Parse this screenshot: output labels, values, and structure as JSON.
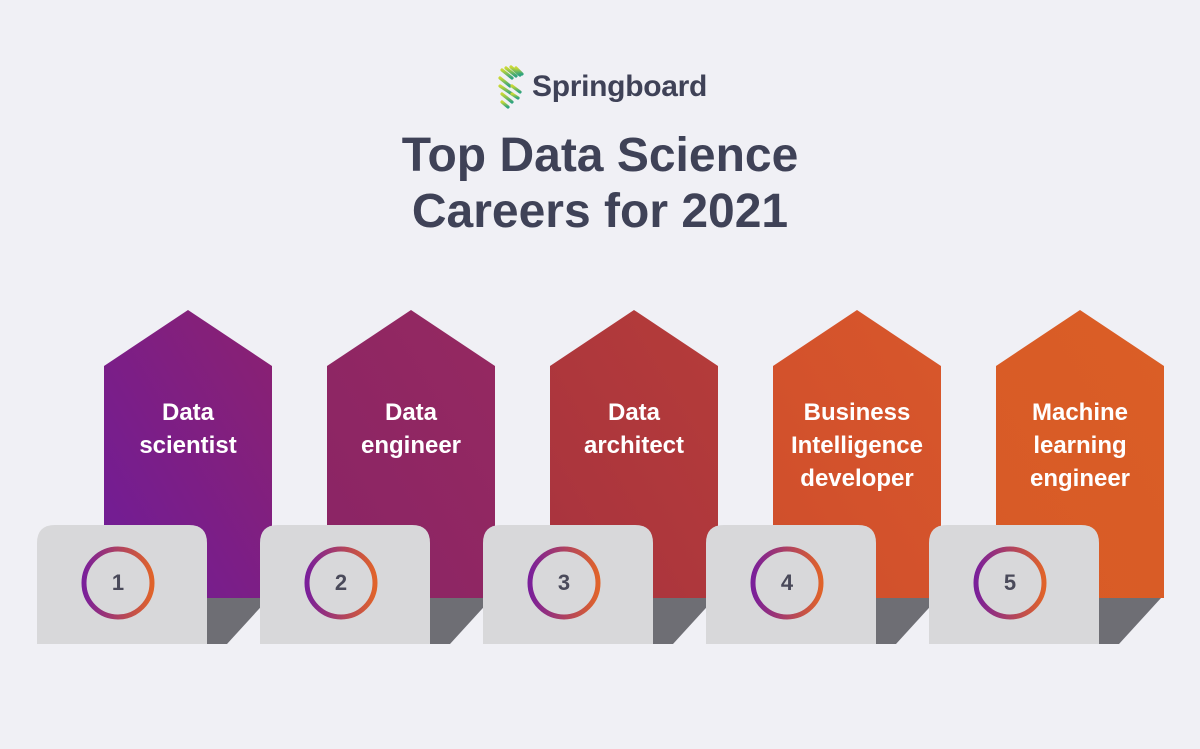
{
  "brand": {
    "name": "Springboard",
    "logo_icon": "springboard-leaf-icon",
    "text_color": "#3f4257"
  },
  "title": {
    "line1": "Top Data Science",
    "line2": "Careers for 2021"
  },
  "steps": [
    {
      "number": "1",
      "label_lines": [
        "Data",
        "scientist"
      ],
      "color_top": "#6f1c99",
      "color_bottom": "#8b2170"
    },
    {
      "number": "2",
      "label_lines": [
        "Data",
        "engineer"
      ],
      "color_top": "#8a2466",
      "color_bottom": "#952960"
    },
    {
      "number": "3",
      "label_lines": [
        "Data",
        "architect"
      ],
      "color_top": "#a8333f",
      "color_bottom": "#b53c39"
    },
    {
      "number": "4",
      "label_lines": [
        "Business",
        "Intelligence",
        "developer"
      ],
      "color_top": "#cf4e2c",
      "color_bottom": "#d8572b"
    },
    {
      "number": "5",
      "label_lines": [
        "Machine",
        "learning",
        "engineer"
      ],
      "color_top": "#d85a27",
      "color_bottom": "#da5e26"
    }
  ],
  "colors": {
    "background": "#f0f0f5",
    "pedestal_face": "#d8d8da",
    "pedestal_shadow": "#6e6e74",
    "ring_start": "#7a1f9a",
    "ring_end": "#e0632a"
  }
}
